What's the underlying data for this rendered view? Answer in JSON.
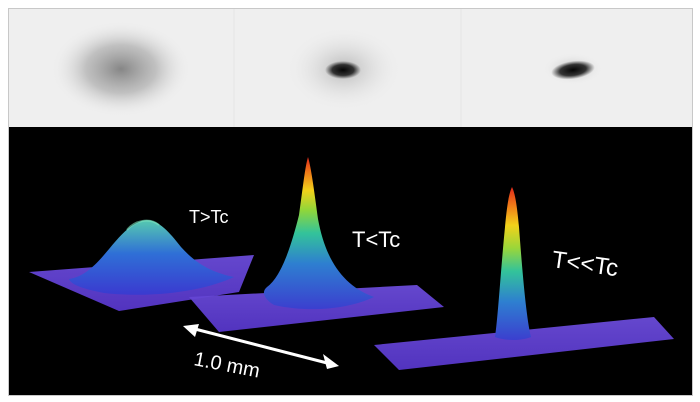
{
  "labels": {
    "above": "T>Tc",
    "below": "T<Tc",
    "far_below": "T<<Tc",
    "scale": "1.0 mm"
  }
}
